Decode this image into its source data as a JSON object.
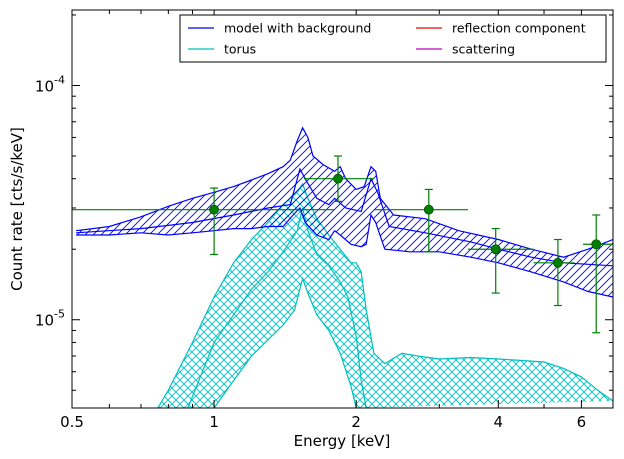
{
  "chart_data": {
    "type": "line",
    "xlabel": "Energy [keV]",
    "ylabel": "Count rate [cts/s/keV]",
    "x_scale": "log",
    "y_scale": "log",
    "xlim": [
      0.5,
      7.0
    ],
    "ylim": [
      4.2e-06,
      0.00021
    ],
    "x_ticks": [
      {
        "value": 0.5,
        "label": "0.5"
      },
      {
        "value": 1,
        "label": "1"
      },
      {
        "value": 2,
        "label": "2"
      },
      {
        "value": 4,
        "label": "4"
      },
      {
        "value": 6,
        "label": "6"
      }
    ],
    "y_ticks": [
      {
        "value": 1e-05,
        "label": "10",
        "exp": "-5"
      },
      {
        "value": 0.0001,
        "label": "10",
        "exp": "-4"
      }
    ],
    "grid": false,
    "legend": {
      "placement": "top-right",
      "columns": 2,
      "entries": [
        {
          "label": "model with background",
          "color": "#0000ff"
        },
        {
          "label": "torus",
          "color": "#00bfbf"
        },
        {
          "label": "reflection component",
          "color": "#ff0000"
        },
        {
          "label": "scattering",
          "color": "#bf00bf"
        }
      ]
    },
    "colors": {
      "model": "#0000ff",
      "torus": "#00bfbf",
      "data": "#008000",
      "reflection": "#ff0000",
      "scattering": "#bf00bf"
    },
    "bands": [
      {
        "name": "model with background",
        "color": "#0000ff",
        "hatch": "diagonal",
        "upper": [
          [
            0.51,
            2.4e-05
          ],
          [
            0.6,
            2.5e-05
          ],
          [
            0.7,
            2.75e-05
          ],
          [
            0.8,
            3.05e-05
          ],
          [
            0.9,
            3.3e-05
          ],
          [
            1.0,
            3.5e-05
          ],
          [
            1.1,
            3.7e-05
          ],
          [
            1.2,
            3.95e-05
          ],
          [
            1.3,
            4.2e-05
          ],
          [
            1.4,
            4.5e-05
          ],
          [
            1.45,
            4.8e-05
          ],
          [
            1.5,
            5.8e-05
          ],
          [
            1.54,
            6.6e-05
          ],
          [
            1.58,
            6e-05
          ],
          [
            1.62,
            5e-05
          ],
          [
            1.7,
            4.6e-05
          ],
          [
            1.8,
            4.3e-05
          ],
          [
            1.85,
            4.5e-05
          ],
          [
            1.9,
            4e-05
          ],
          [
            2.0,
            3.6e-05
          ],
          [
            2.08,
            3.7e-05
          ],
          [
            2.15,
            4.5e-05
          ],
          [
            2.2,
            4.3e-05
          ],
          [
            2.25,
            3.3e-05
          ],
          [
            2.4,
            2.8e-05
          ],
          [
            2.8,
            2.7e-05
          ],
          [
            3.3,
            2.4e-05
          ],
          [
            4.0,
            2.2e-05
          ],
          [
            4.7,
            2e-05
          ],
          [
            5.5,
            1.85e-05
          ],
          [
            6.2,
            2e-05
          ],
          [
            7.0,
            2.2e-05
          ]
        ],
        "lower": [
          [
            0.51,
            2.3e-05
          ],
          [
            0.6,
            2.3e-05
          ],
          [
            0.7,
            2.35e-05
          ],
          [
            0.8,
            2.3e-05
          ],
          [
            0.9,
            2.35e-05
          ],
          [
            1.0,
            2.4e-05
          ],
          [
            1.1,
            2.45e-05
          ],
          [
            1.2,
            2.45e-05
          ],
          [
            1.3,
            2.5e-05
          ],
          [
            1.4,
            2.5e-05
          ],
          [
            1.47,
            2.8e-05
          ],
          [
            1.52,
            3e-05
          ],
          [
            1.56,
            2.6e-05
          ],
          [
            1.65,
            2.3e-05
          ],
          [
            1.75,
            2.2e-05
          ],
          [
            1.8,
            2.4e-05
          ],
          [
            1.85,
            2.3e-05
          ],
          [
            1.95,
            2.1e-05
          ],
          [
            2.05,
            2.05e-05
          ],
          [
            2.1,
            2.1e-05
          ],
          [
            2.15,
            2.8e-05
          ],
          [
            2.2,
            2.6e-05
          ],
          [
            2.3,
            2e-05
          ],
          [
            2.6,
            1.95e-05
          ],
          [
            3.0,
            1.95e-05
          ],
          [
            3.5,
            1.85e-05
          ],
          [
            4.0,
            1.75e-05
          ],
          [
            4.7,
            1.6e-05
          ],
          [
            5.5,
            1.45e-05
          ],
          [
            6.2,
            1.32e-05
          ],
          [
            7.0,
            1.25e-05
          ]
        ],
        "mid": [
          [
            0.51,
            2.35e-05
          ],
          [
            0.7,
            2.45e-05
          ],
          [
            0.9,
            2.6e-05
          ],
          [
            1.1,
            2.8e-05
          ],
          [
            1.3,
            3e-05
          ],
          [
            1.45,
            3.1e-05
          ],
          [
            1.52,
            4.4e-05
          ],
          [
            1.57,
            3.9e-05
          ],
          [
            1.65,
            3.3e-05
          ],
          [
            1.75,
            3.1e-05
          ],
          [
            1.8,
            3.3e-05
          ],
          [
            1.9,
            3e-05
          ],
          [
            2.05,
            2.9e-05
          ],
          [
            2.15,
            4e-05
          ],
          [
            2.22,
            3.5e-05
          ],
          [
            2.35,
            2.5e-05
          ],
          [
            2.8,
            2.35e-05
          ],
          [
            3.5,
            2.15e-05
          ],
          [
            4.0,
            2e-05
          ],
          [
            4.7,
            1.85e-05
          ],
          [
            5.5,
            1.75e-05
          ],
          [
            7.0,
            1.7e-05
          ]
        ]
      },
      {
        "name": "torus",
        "color": "#00bfbf",
        "hatch": "cross",
        "upper": [
          [
            0.76,
            4.2e-06
          ],
          [
            0.8,
            5e-06
          ],
          [
            0.9,
            8e-06
          ],
          [
            1.0,
            1.25e-05
          ],
          [
            1.1,
            1.75e-05
          ],
          [
            1.2,
            2.2e-05
          ],
          [
            1.3,
            2.6e-05
          ],
          [
            1.4,
            3.1e-05
          ],
          [
            1.45,
            3.3e-05
          ],
          [
            1.5,
            3.5e-05
          ],
          [
            1.54,
            3.8e-05
          ],
          [
            1.58,
            3.3e-05
          ],
          [
            1.65,
            2.7e-05
          ],
          [
            1.75,
            2.3e-05
          ],
          [
            1.85,
            2e-05
          ],
          [
            1.95,
            1.75e-05
          ],
          [
            2.0,
            1.75e-05
          ],
          [
            2.05,
            1.6e-05
          ],
          [
            2.1,
            1.1e-05
          ],
          [
            2.18,
            7.2e-06
          ],
          [
            2.3,
            6.5e-06
          ],
          [
            2.5,
            7.2e-06
          ],
          [
            2.7,
            7e-06
          ],
          [
            3.0,
            6.8e-06
          ],
          [
            3.5,
            6.9e-06
          ],
          [
            4.0,
            6.8e-06
          ],
          [
            4.5,
            6.7e-06
          ],
          [
            5.0,
            6.6e-06
          ],
          [
            5.5,
            6.2e-06
          ],
          [
            6.0,
            5.7e-06
          ],
          [
            6.5,
            5e-06
          ],
          [
            7.0,
            4.5e-06
          ]
        ],
        "lower": [
          [
            1.0,
            4.2e-06
          ],
          [
            1.1,
            5.5e-06
          ],
          [
            1.2,
            7e-06
          ],
          [
            1.3,
            8.2e-06
          ],
          [
            1.4,
            9.5e-06
          ],
          [
            1.48,
            1.1e-05
          ],
          [
            1.54,
            1.5e-05
          ],
          [
            1.58,
            1.3e-05
          ],
          [
            1.65,
            1.05e-05
          ],
          [
            1.75,
            9e-06
          ],
          [
            1.85,
            7.2e-06
          ],
          [
            1.95,
            5.2e-06
          ],
          [
            2.0,
            4.2e-06
          ]
        ],
        "mid": [
          [
            0.88,
            4.2e-06
          ],
          [
            1.0,
            8e-06
          ],
          [
            1.1,
            1.05e-05
          ],
          [
            1.2,
            1.35e-05
          ],
          [
            1.3,
            1.6e-05
          ],
          [
            1.4,
            1.95e-05
          ],
          [
            1.5,
            2.4e-05
          ],
          [
            1.54,
            3e-05
          ],
          [
            1.58,
            2.4e-05
          ],
          [
            1.65,
            1.9e-05
          ],
          [
            1.75,
            1.7e-05
          ],
          [
            1.85,
            1.45e-05
          ],
          [
            1.92,
            1.25e-05
          ],
          [
            2.0,
            8.5e-06
          ],
          [
            2.05,
            5.5e-06
          ],
          [
            2.1,
            4.2e-06
          ]
        ]
      }
    ],
    "data_points": {
      "color": "#008000",
      "points": [
        {
          "x": 1.0,
          "y": 2.95e-05,
          "xerr": [
            0.5,
            1.8
          ],
          "yerr": [
            1.9e-05,
            3.65e-05
          ]
        },
        {
          "x": 1.83,
          "y": 4e-05,
          "xerr": [
            1.55,
            2.18
          ],
          "yerr": [
            3.2e-05,
            5e-05
          ]
        },
        {
          "x": 2.85,
          "y": 2.95e-05,
          "xerr": [
            2.18,
            3.45
          ],
          "yerr": [
            1.95e-05,
            3.6e-05
          ]
        },
        {
          "x": 3.95,
          "y": 2e-05,
          "xerr": [
            3.45,
            4.75
          ],
          "yerr": [
            1.3e-05,
            2.45e-05
          ]
        },
        {
          "x": 5.35,
          "y": 1.75e-05,
          "xerr": [
            4.75,
            5.8
          ],
          "yerr": [
            1.15e-05,
            2.2e-05
          ]
        },
        {
          "x": 6.45,
          "y": 2.1e-05,
          "xerr": [
            6.05,
            7.0
          ],
          "yerr": [
            8.8e-06,
            2.8e-05
          ]
        }
      ]
    }
  }
}
